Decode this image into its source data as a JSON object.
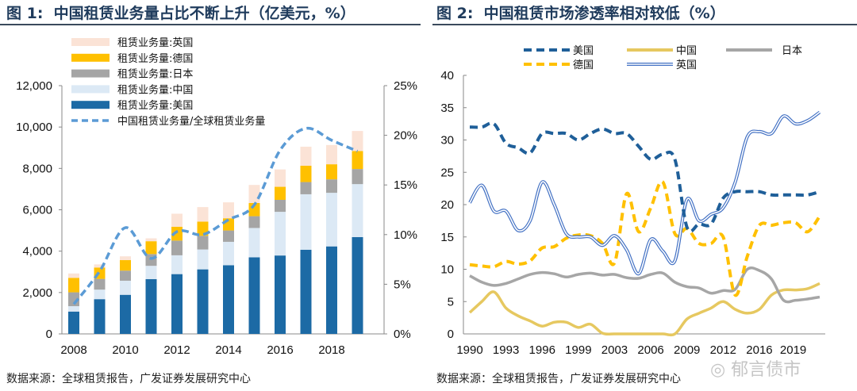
{
  "chart_data": [
    {
      "type": "bar",
      "stacked": true,
      "title": "图 1:  中国租赁业务量占比不断上升（亿美元，%）",
      "categories": [
        "2008",
        "2009",
        "2010",
        "2011",
        "2012",
        "2013",
        "2014",
        "2015",
        "2016",
        "2017",
        "2018",
        "2019"
      ],
      "x_tick_labels": [
        "2008",
        "2010",
        "2012",
        "2014",
        "2016",
        "2018"
      ],
      "ylim": [
        0,
        12000
      ],
      "y_ticks": [
        "0",
        "2,000",
        "4,000",
        "6,000",
        "8,000",
        "10,000",
        "12,000"
      ],
      "y2lim": [
        0,
        25
      ],
      "y2_ticks": [
        "0%",
        "5%",
        "10%",
        "15%",
        "20%",
        "25%"
      ],
      "legend_position": "top-left",
      "grid": false,
      "series": [
        {
          "name": "租赁业务量:美国",
          "color": "#1c6aa5",
          "values": [
            1080,
            1680,
            1890,
            2650,
            2890,
            3120,
            3320,
            3700,
            3790,
            4070,
            4230,
            4680
          ]
        },
        {
          "name": "租赁业务量:中国",
          "color": "#dce9f5",
          "values": [
            260,
            460,
            680,
            640,
            910,
            960,
            1130,
            1420,
            2110,
            2680,
            2590,
            2560
          ]
        },
        {
          "name": "租赁业务量:日本",
          "color": "#a5a5a5",
          "values": [
            670,
            520,
            490,
            570,
            710,
            660,
            550,
            570,
            580,
            590,
            650,
            730
          ]
        },
        {
          "name": "租赁业务量:德国",
          "color": "#ffc000",
          "values": [
            700,
            550,
            510,
            620,
            670,
            690,
            590,
            640,
            630,
            790,
            730,
            870
          ]
        },
        {
          "name": "租赁业务量:英国",
          "color": "#fbe3d6",
          "values": [
            210,
            150,
            180,
            140,
            630,
            700,
            770,
            870,
            840,
            920,
            930,
            970
          ]
        }
      ],
      "line_series": {
        "name": "中国租赁业务量/全球租赁业务量",
        "color": "#5b9bd5",
        "axis": "right",
        "unit": "%",
        "values": [
          3.0,
          6.3,
          10.7,
          7.6,
          10.3,
          10.0,
          11.5,
          13.0,
          18.5,
          20.7,
          19.5,
          18.4
        ]
      },
      "legend_order": [
        "租赁业务量:英国",
        "租赁业务量:德国",
        "租赁业务量:日本",
        "租赁业务量:中国",
        "租赁业务量:美国",
        "中国租赁业务量/全球租赁业务量"
      ],
      "source": "数据来源：全球租赁报告，广发证券发展研究中心"
    },
    {
      "type": "line",
      "title": "图 2:  中国租赁市场渗透率相对较低（%）",
      "x": [
        1990,
        1991,
        1992,
        1993,
        1994,
        1995,
        1996,
        1997,
        1998,
        1999,
        2000,
        2001,
        2002,
        2003,
        2004,
        2005,
        2006,
        2007,
        2008,
        2009,
        2010,
        2011,
        2012,
        2013,
        2014,
        2015,
        2016,
        2017,
        2018,
        2019
      ],
      "x_tick_labels": [
        "1990",
        "1993",
        "1996",
        "1999",
        "2003",
        "2006",
        "2009",
        "2012",
        "2016",
        "2019"
      ],
      "ylim": [
        0,
        40
      ],
      "y_ticks": [
        "0",
        "5",
        "10",
        "15",
        "20",
        "25",
        "30",
        "35",
        "40"
      ],
      "legend_position": "top",
      "grid": false,
      "series": [
        {
          "name": "美国",
          "color": "#1f5f99",
          "style": "dashed",
          "values": [
            32,
            32,
            32.5,
            29.5,
            28.8,
            28,
            31,
            31,
            31,
            30,
            31,
            31.7,
            31,
            31,
            29,
            27,
            27.8,
            27,
            16.5,
            17,
            17,
            21,
            22,
            22,
            22,
            21.5,
            21.5,
            21.5,
            21.5,
            22
          ]
        },
        {
          "name": "中国",
          "color": "#e6c860",
          "style": "solid",
          "values": [
            3.3,
            5,
            6.5,
            4,
            2.8,
            2,
            1.2,
            1.8,
            1.8,
            1,
            1.5,
            0.1,
            0,
            0,
            0,
            0,
            0,
            0,
            2.3,
            3.2,
            4,
            5,
            3.8,
            3.2,
            3.8,
            6,
            6.8,
            6.8,
            7,
            7.8
          ]
        },
        {
          "name": "日本",
          "color": "#a6a6a6",
          "style": "solid",
          "values": [
            9,
            8,
            7.5,
            7.8,
            8.5,
            9.2,
            9.5,
            9.3,
            8.8,
            9.2,
            9.4,
            9.1,
            9.2,
            8.7,
            8.6,
            9.2,
            9.4,
            8,
            7.3,
            7.1,
            6.3,
            6.7,
            6.9,
            10,
            9.8,
            8.5,
            5.2,
            5.2,
            5.4,
            5.7
          ]
        },
        {
          "name": "德国",
          "color": "#ffc000",
          "style": "dashed",
          "values": [
            10.7,
            10.5,
            10.4,
            11.2,
            10.8,
            11.3,
            13.3,
            13.5,
            14.8,
            15.3,
            15.2,
            14,
            11,
            21.7,
            15.8,
            19.5,
            23.5,
            15.5,
            16.3,
            14,
            14,
            15,
            6,
            12,
            16.8,
            16.8,
            17.2,
            17.2,
            15.8,
            18.2
          ]
        },
        {
          "name": "英国",
          "color": "#4472c4",
          "style": "double",
          "values": [
            20.3,
            23,
            19,
            19,
            16,
            17.5,
            23.5,
            20,
            15.5,
            15,
            15,
            13.7,
            15.2,
            13,
            9.3,
            14.6,
            12.8,
            11.3,
            20.8,
            17.5,
            18.5,
            19.5,
            23.5,
            30.5,
            31.3,
            31,
            33.7,
            32.5,
            33,
            34.3
          ]
        }
      ],
      "source": "数据来源：全球租赁报告，广发证券发展研究中心"
    }
  ],
  "watermark": "郁言债市"
}
